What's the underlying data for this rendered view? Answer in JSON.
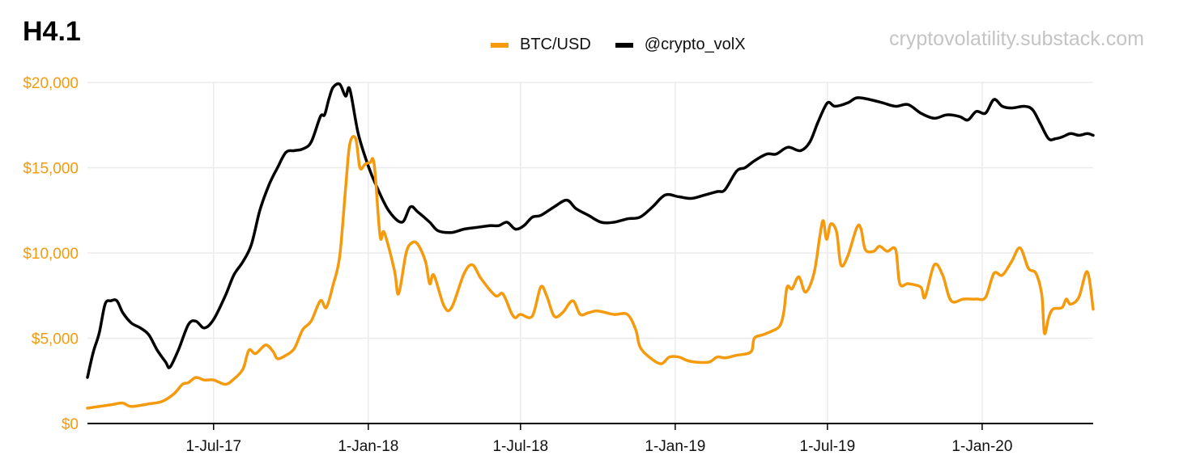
{
  "title": "H4.1",
  "watermark": "cryptovolatility.substack.com",
  "colors": {
    "btc": "#f59a0c",
    "vol": "#000000",
    "grid": "#ebebeb",
    "axis_label": "#f59a0c",
    "x_label": "#111111"
  },
  "chart_data": {
    "type": "line",
    "title": "H4.1",
    "xlabel": "",
    "ylabel": "",
    "ylim": [
      0,
      20000
    ],
    "y_ticks": [
      0,
      5000,
      10000,
      15000,
      20000
    ],
    "y_tick_labels": [
      "$0",
      "$5,000",
      "$10,000",
      "$15,000",
      "$20,000"
    ],
    "x_range": [
      "2017-02-01",
      "2020-05-12"
    ],
    "x_tick_labels": [
      "1-Jul-17",
      "1-Jan-18",
      "1-Jul-18",
      "1-Jan-19",
      "1-Jul-19",
      "1-Jan-20"
    ],
    "x_tick_dates": [
      "2017-07-01",
      "2018-01-01",
      "2018-07-01",
      "2019-01-01",
      "2019-07-01",
      "2020-01-01"
    ],
    "legend_position": "top-center",
    "grid": true,
    "series": [
      {
        "name": "BTC/USD",
        "color": "#f59a0c",
        "points": [
          [
            "2017-02-01",
            900
          ],
          [
            "2017-02-15",
            1000
          ],
          [
            "2017-03-01",
            1100
          ],
          [
            "2017-03-15",
            1200
          ],
          [
            "2017-03-25",
            1000
          ],
          [
            "2017-04-15",
            1150
          ],
          [
            "2017-05-01",
            1300
          ],
          [
            "2017-05-15",
            1750
          ],
          [
            "2017-05-25",
            2300
          ],
          [
            "2017-06-01",
            2400
          ],
          [
            "2017-06-10",
            2700
          ],
          [
            "2017-06-20",
            2550
          ],
          [
            "2017-07-01",
            2550
          ],
          [
            "2017-07-15",
            2300
          ],
          [
            "2017-07-25",
            2600
          ],
          [
            "2017-08-05",
            3200
          ],
          [
            "2017-08-12",
            4300
          ],
          [
            "2017-08-20",
            4100
          ],
          [
            "2017-09-01",
            4600
          ],
          [
            "2017-09-10",
            4200
          ],
          [
            "2017-09-15",
            3800
          ],
          [
            "2017-09-25",
            4000
          ],
          [
            "2017-10-05",
            4400
          ],
          [
            "2017-10-15",
            5500
          ],
          [
            "2017-10-25",
            6000
          ],
          [
            "2017-11-05",
            7200
          ],
          [
            "2017-11-12",
            6800
          ],
          [
            "2017-11-20",
            8100
          ],
          [
            "2017-11-28",
            9800
          ],
          [
            "2017-12-05",
            13800
          ],
          [
            "2017-12-10",
            16400
          ],
          [
            "2017-12-17",
            16700
          ],
          [
            "2017-12-22",
            15000
          ],
          [
            "2017-12-28",
            15200
          ],
          [
            "2018-01-03",
            15300
          ],
          [
            "2018-01-08",
            15200
          ],
          [
            "2018-01-15",
            11000
          ],
          [
            "2018-01-20",
            11200
          ],
          [
            "2018-02-01",
            9000
          ],
          [
            "2018-02-06",
            7600
          ],
          [
            "2018-02-15",
            10000
          ],
          [
            "2018-02-22",
            10600
          ],
          [
            "2018-03-01",
            10500
          ],
          [
            "2018-03-10",
            9500
          ],
          [
            "2018-03-15",
            8200
          ],
          [
            "2018-03-20",
            8700
          ],
          [
            "2018-04-01",
            6900
          ],
          [
            "2018-04-10",
            6800
          ],
          [
            "2018-04-25",
            8800
          ],
          [
            "2018-05-05",
            9300
          ],
          [
            "2018-05-15",
            8500
          ],
          [
            "2018-06-01",
            7500
          ],
          [
            "2018-06-10",
            7600
          ],
          [
            "2018-06-20",
            6500
          ],
          [
            "2018-06-25",
            6200
          ],
          [
            "2018-07-01",
            6400
          ],
          [
            "2018-07-15",
            6300
          ],
          [
            "2018-07-25",
            8000
          ],
          [
            "2018-08-01",
            7500
          ],
          [
            "2018-08-10",
            6300
          ],
          [
            "2018-08-20",
            6500
          ],
          [
            "2018-09-01",
            7200
          ],
          [
            "2018-09-10",
            6400
          ],
          [
            "2018-09-20",
            6500
          ],
          [
            "2018-10-01",
            6600
          ],
          [
            "2018-10-20",
            6400
          ],
          [
            "2018-11-05",
            6400
          ],
          [
            "2018-11-15",
            5500
          ],
          [
            "2018-11-20",
            4500
          ],
          [
            "2018-12-01",
            3900
          ],
          [
            "2018-12-15",
            3500
          ],
          [
            "2018-12-25",
            3900
          ],
          [
            "2019-01-05",
            3900
          ],
          [
            "2019-01-15",
            3700
          ],
          [
            "2019-01-25",
            3600
          ],
          [
            "2019-02-10",
            3600
          ],
          [
            "2019-02-20",
            3900
          ],
          [
            "2019-03-01",
            3850
          ],
          [
            "2019-03-15",
            4000
          ],
          [
            "2019-04-01",
            4200
          ],
          [
            "2019-04-05",
            5000
          ],
          [
            "2019-04-15",
            5200
          ],
          [
            "2019-04-25",
            5400
          ],
          [
            "2019-05-05",
            5700
          ],
          [
            "2019-05-10",
            6500
          ],
          [
            "2019-05-14",
            8000
          ],
          [
            "2019-05-20",
            7900
          ],
          [
            "2019-05-28",
            8600
          ],
          [
            "2019-06-05",
            7700
          ],
          [
            "2019-06-15",
            8800
          ],
          [
            "2019-06-22",
            11000
          ],
          [
            "2019-06-26",
            11900
          ],
          [
            "2019-06-30",
            10800
          ],
          [
            "2019-07-05",
            11700
          ],
          [
            "2019-07-12",
            11200
          ],
          [
            "2019-07-17",
            9300
          ],
          [
            "2019-07-25",
            9800
          ],
          [
            "2019-08-05",
            11500
          ],
          [
            "2019-08-10",
            11400
          ],
          [
            "2019-08-15",
            10200
          ],
          [
            "2019-08-25",
            10100
          ],
          [
            "2019-09-01",
            10400
          ],
          [
            "2019-09-10",
            10100
          ],
          [
            "2019-09-20",
            10200
          ],
          [
            "2019-09-25",
            8200
          ],
          [
            "2019-10-05",
            8200
          ],
          [
            "2019-10-20",
            8000
          ],
          [
            "2019-10-25",
            7400
          ],
          [
            "2019-11-05",
            9300
          ],
          [
            "2019-11-15",
            8700
          ],
          [
            "2019-11-25",
            7200
          ],
          [
            "2019-12-10",
            7300
          ],
          [
            "2019-12-25",
            7300
          ],
          [
            "2020-01-05",
            7400
          ],
          [
            "2020-01-15",
            8800
          ],
          [
            "2020-01-25",
            8700
          ],
          [
            "2020-02-05",
            9500
          ],
          [
            "2020-02-15",
            10300
          ],
          [
            "2020-02-25",
            9100
          ],
          [
            "2020-03-05",
            8800
          ],
          [
            "2020-03-12",
            7500
          ],
          [
            "2020-03-15",
            5300
          ],
          [
            "2020-03-20",
            6200
          ],
          [
            "2020-03-25",
            6700
          ],
          [
            "2020-04-05",
            6800
          ],
          [
            "2020-04-10",
            7300
          ],
          [
            "2020-04-15",
            7000
          ],
          [
            "2020-04-25",
            7400
          ],
          [
            "2020-05-05",
            8900
          ],
          [
            "2020-05-12",
            6700
          ]
        ]
      },
      {
        "name": "@crypto_volX",
        "color": "#000000",
        "points": [
          [
            "2017-02-01",
            2700
          ],
          [
            "2017-02-08",
            4200
          ],
          [
            "2017-02-15",
            5300
          ],
          [
            "2017-02-22",
            7000
          ],
          [
            "2017-03-01",
            7200
          ],
          [
            "2017-03-08",
            7200
          ],
          [
            "2017-03-15",
            6500
          ],
          [
            "2017-03-25",
            5900
          ],
          [
            "2017-04-05",
            5600
          ],
          [
            "2017-04-15",
            5200
          ],
          [
            "2017-04-25",
            4300
          ],
          [
            "2017-05-05",
            3600
          ],
          [
            "2017-05-10",
            3300
          ],
          [
            "2017-05-20",
            4300
          ],
          [
            "2017-06-01",
            5800
          ],
          [
            "2017-06-10",
            6000
          ],
          [
            "2017-06-20",
            5600
          ],
          [
            "2017-07-01",
            6100
          ],
          [
            "2017-07-15",
            7500
          ],
          [
            "2017-07-25",
            8700
          ],
          [
            "2017-08-05",
            9500
          ],
          [
            "2017-08-15",
            10500
          ],
          [
            "2017-08-25",
            12500
          ],
          [
            "2017-09-05",
            14000
          ],
          [
            "2017-09-15",
            15000
          ],
          [
            "2017-09-25",
            15900
          ],
          [
            "2017-10-05",
            16000
          ],
          [
            "2017-10-15",
            16100
          ],
          [
            "2017-10-25",
            16500
          ],
          [
            "2017-11-05",
            18000
          ],
          [
            "2017-11-10",
            18100
          ],
          [
            "2017-11-15",
            19000
          ],
          [
            "2017-11-20",
            19700
          ],
          [
            "2017-11-28",
            19900
          ],
          [
            "2017-12-05",
            19200
          ],
          [
            "2017-12-10",
            19600
          ],
          [
            "2017-12-20",
            17000
          ],
          [
            "2018-01-01",
            15100
          ],
          [
            "2018-01-10",
            14000
          ],
          [
            "2018-01-25",
            12500
          ],
          [
            "2018-02-10",
            11800
          ],
          [
            "2018-02-20",
            12700
          ],
          [
            "2018-03-01",
            12400
          ],
          [
            "2018-03-15",
            11800
          ],
          [
            "2018-03-25",
            11300
          ],
          [
            "2018-04-10",
            11200
          ],
          [
            "2018-04-25",
            11400
          ],
          [
            "2018-05-10",
            11500
          ],
          [
            "2018-05-25",
            11600
          ],
          [
            "2018-06-05",
            11600
          ],
          [
            "2018-06-15",
            11800
          ],
          [
            "2018-06-25",
            11400
          ],
          [
            "2018-07-05",
            11600
          ],
          [
            "2018-07-15",
            12100
          ],
          [
            "2018-07-25",
            12200
          ],
          [
            "2018-08-10",
            12700
          ],
          [
            "2018-08-25",
            13100
          ],
          [
            "2018-09-05",
            12600
          ],
          [
            "2018-09-20",
            12200
          ],
          [
            "2018-10-05",
            11800
          ],
          [
            "2018-10-20",
            11800
          ],
          [
            "2018-11-05",
            12000
          ],
          [
            "2018-11-20",
            12100
          ],
          [
            "2018-12-05",
            12700
          ],
          [
            "2018-12-20",
            13400
          ],
          [
            "2019-01-05",
            13300
          ],
          [
            "2019-01-20",
            13200
          ],
          [
            "2019-02-05",
            13400
          ],
          [
            "2019-02-20",
            13600
          ],
          [
            "2019-03-01",
            13700
          ],
          [
            "2019-03-15",
            14800
          ],
          [
            "2019-03-25",
            15000
          ],
          [
            "2019-04-05",
            15400
          ],
          [
            "2019-04-20",
            15800
          ],
          [
            "2019-05-01",
            15800
          ],
          [
            "2019-05-15",
            16200
          ],
          [
            "2019-05-30",
            16000
          ],
          [
            "2019-06-10",
            16500
          ],
          [
            "2019-06-20",
            17700
          ],
          [
            "2019-07-01",
            18800
          ],
          [
            "2019-07-10",
            18600
          ],
          [
            "2019-07-25",
            18800
          ],
          [
            "2019-08-05",
            19100
          ],
          [
            "2019-08-20",
            19000
          ],
          [
            "2019-09-05",
            18800
          ],
          [
            "2019-09-20",
            18600
          ],
          [
            "2019-10-05",
            18700
          ],
          [
            "2019-10-20",
            18200
          ],
          [
            "2019-11-05",
            17900
          ],
          [
            "2019-11-20",
            18100
          ],
          [
            "2019-12-05",
            18000
          ],
          [
            "2019-12-15",
            17800
          ],
          [
            "2019-12-25",
            18300
          ],
          [
            "2020-01-05",
            18200
          ],
          [
            "2020-01-15",
            19000
          ],
          [
            "2020-01-25",
            18600
          ],
          [
            "2020-02-05",
            18500
          ],
          [
            "2020-02-20",
            18600
          ],
          [
            "2020-03-01",
            18400
          ],
          [
            "2020-03-10",
            17600
          ],
          [
            "2020-03-20",
            16700
          ],
          [
            "2020-03-28",
            16700
          ],
          [
            "2020-04-05",
            16800
          ],
          [
            "2020-04-15",
            17000
          ],
          [
            "2020-04-25",
            16900
          ],
          [
            "2020-05-05",
            17000
          ],
          [
            "2020-05-12",
            16900
          ]
        ]
      }
    ]
  }
}
